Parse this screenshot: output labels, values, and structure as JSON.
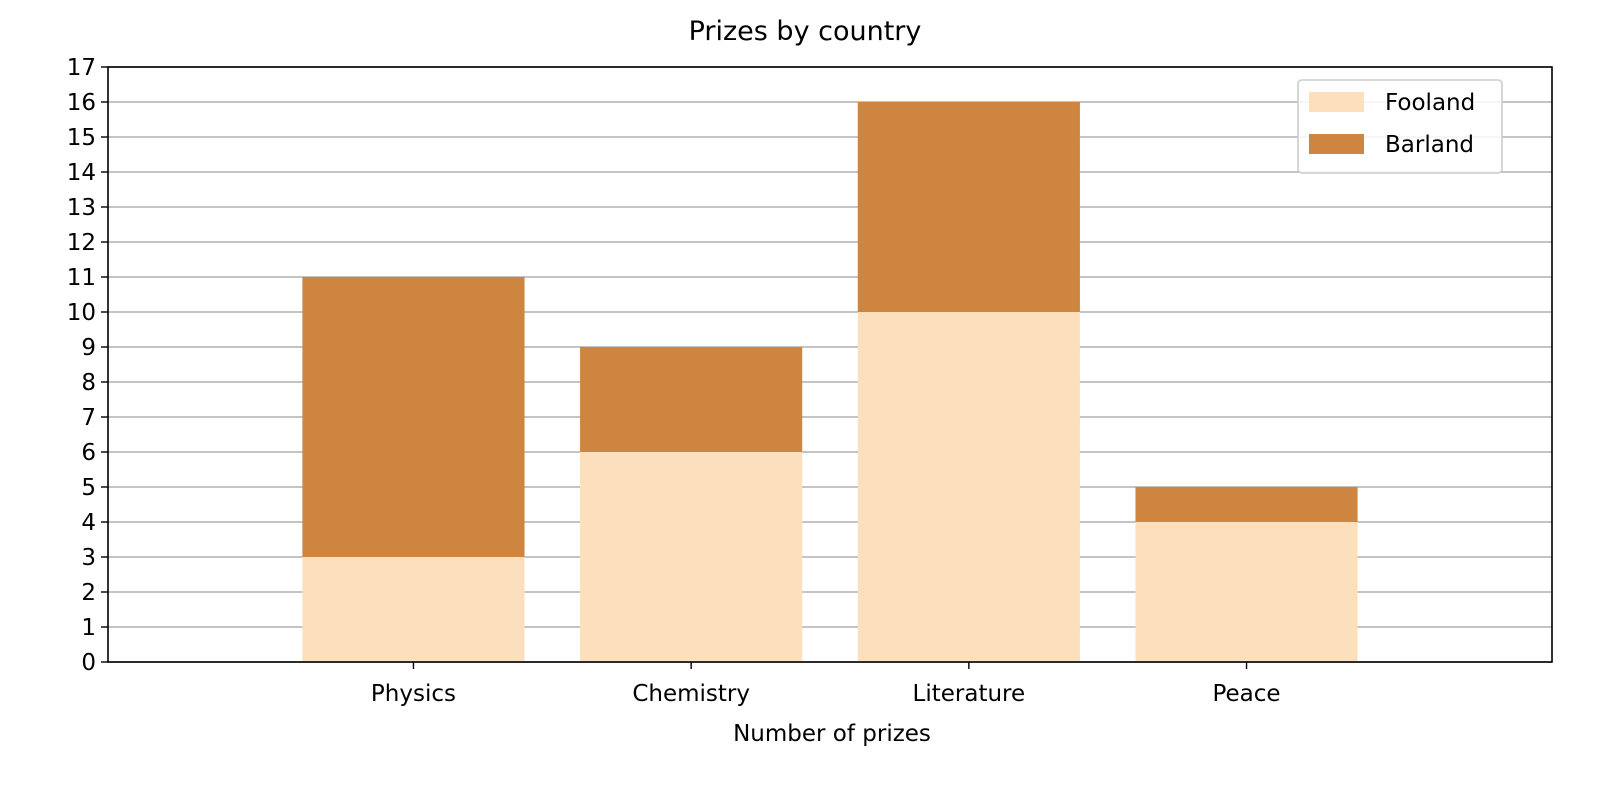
{
  "chart_data": {
    "type": "bar",
    "stacked": true,
    "title": "Prizes by country",
    "xlabel": "Number of prizes",
    "ylabel": "",
    "categories": [
      "Physics",
      "Chemistry",
      "Literature",
      "Peace"
    ],
    "series": [
      {
        "name": "Fooland",
        "values": [
          3,
          6,
          10,
          4
        ],
        "color": "#fce0bd"
      },
      {
        "name": "Barland",
        "values": [
          8,
          3,
          6,
          1
        ],
        "color": "#cd853f"
      }
    ],
    "ylim": [
      0,
      17
    ],
    "yticks": [
      "0",
      "1",
      "2",
      "3",
      "4",
      "5",
      "6",
      "7",
      "8",
      "9",
      "10",
      "11",
      "12",
      "13",
      "14",
      "15",
      "16",
      "17"
    ],
    "grid": "horizontal",
    "grid_color": "#b0b0b0",
    "legend_position": "top-right"
  }
}
